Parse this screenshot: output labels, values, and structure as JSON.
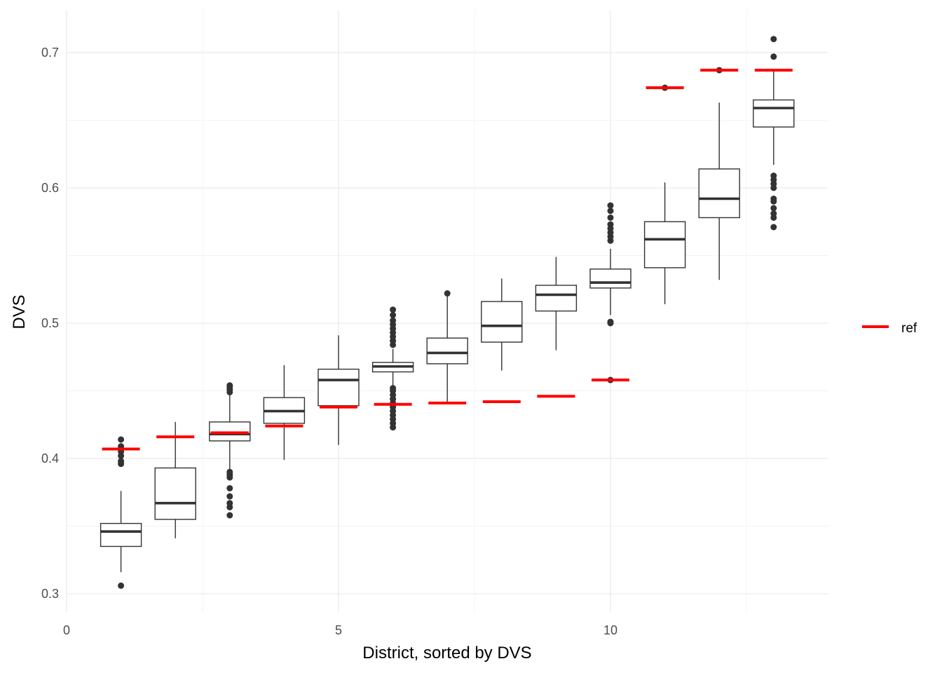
{
  "chart_data": {
    "type": "boxplot",
    "xlabel": "District, sorted by DVS",
    "ylabel": "DVS",
    "xlim": [
      0,
      14
    ],
    "ylim": [
      0.29,
      0.725
    ],
    "x_ticks": [
      0,
      5,
      10
    ],
    "y_ticks": [
      0.3,
      0.4,
      0.5,
      0.6,
      0.7
    ],
    "y_tick_labels": [
      "0.3",
      "0.4",
      "0.5",
      "0.6",
      "0.7"
    ],
    "x_tick_labels": [
      "0",
      "5",
      "10"
    ],
    "grid": true,
    "legend": {
      "position": "right",
      "entries": [
        {
          "label": "ref",
          "color": "#ff0000"
        }
      ]
    },
    "colors": {
      "box": "#333333",
      "ref": "#ff0000",
      "grid_major": "#ebebeb",
      "grid_minor": "#f3f3f3"
    },
    "boxes": [
      {
        "x": 1,
        "whisker_low": 0.316,
        "q1": 0.335,
        "median": 0.346,
        "q3": 0.352,
        "whisker_high": 0.376,
        "outliers": [
          0.306,
          0.396,
          0.398,
          0.402,
          0.405,
          0.409,
          0.414
        ]
      },
      {
        "x": 2,
        "whisker_low": 0.341,
        "q1": 0.355,
        "median": 0.367,
        "q3": 0.393,
        "whisker_high": 0.427,
        "outliers": []
      },
      {
        "x": 3,
        "whisker_low": 0.392,
        "q1": 0.413,
        "median": 0.418,
        "q3": 0.427,
        "whisker_high": 0.448,
        "outliers": [
          0.358,
          0.364,
          0.367,
          0.372,
          0.378,
          0.386,
          0.388,
          0.39,
          0.449,
          0.451,
          0.453,
          0.454
        ]
      },
      {
        "x": 4,
        "whisker_low": 0.399,
        "q1": 0.426,
        "median": 0.435,
        "q3": 0.445,
        "whisker_high": 0.469,
        "outliers": []
      },
      {
        "x": 5,
        "whisker_low": 0.41,
        "q1": 0.439,
        "median": 0.458,
        "q3": 0.466,
        "whisker_high": 0.491,
        "outliers": []
      },
      {
        "x": 6,
        "whisker_low": 0.454,
        "q1": 0.464,
        "median": 0.468,
        "q3": 0.471,
        "whisker_high": 0.481,
        "outliers": [
          0.423,
          0.426,
          0.429,
          0.432,
          0.435,
          0.438,
          0.441,
          0.444,
          0.447,
          0.45,
          0.452,
          0.484,
          0.487,
          0.49,
          0.493,
          0.496,
          0.499,
          0.502,
          0.506,
          0.51
        ]
      },
      {
        "x": 7,
        "whisker_low": 0.441,
        "q1": 0.47,
        "median": 0.478,
        "q3": 0.489,
        "whisker_high": 0.522,
        "outliers": [
          0.522
        ]
      },
      {
        "x": 8,
        "whisker_low": 0.465,
        "q1": 0.486,
        "median": 0.498,
        "q3": 0.516,
        "whisker_high": 0.533,
        "outliers": []
      },
      {
        "x": 9,
        "whisker_low": 0.48,
        "q1": 0.509,
        "median": 0.521,
        "q3": 0.528,
        "whisker_high": 0.549,
        "outliers": []
      },
      {
        "x": 10,
        "whisker_low": 0.506,
        "q1": 0.526,
        "median": 0.53,
        "q3": 0.54,
        "whisker_high": 0.555,
        "outliers": [
          0.458,
          0.5,
          0.501,
          0.561,
          0.564,
          0.567,
          0.57,
          0.573,
          0.578,
          0.583,
          0.587
        ]
      },
      {
        "x": 11,
        "whisker_low": 0.514,
        "q1": 0.541,
        "median": 0.562,
        "q3": 0.575,
        "whisker_high": 0.604,
        "outliers": [
          0.674
        ]
      },
      {
        "x": 12,
        "whisker_low": 0.532,
        "q1": 0.578,
        "median": 0.592,
        "q3": 0.614,
        "whisker_high": 0.663,
        "outliers": [
          0.687
        ]
      },
      {
        "x": 13,
        "whisker_low": 0.617,
        "q1": 0.645,
        "median": 0.659,
        "q3": 0.665,
        "whisker_high": 0.687,
        "outliers": [
          0.571,
          0.578,
          0.581,
          0.585,
          0.59,
          0.592,
          0.6,
          0.603,
          0.606,
          0.609,
          0.697,
          0.71
        ]
      }
    ],
    "ref": [
      {
        "x": 1,
        "value": 0.407
      },
      {
        "x": 2,
        "value": 0.416
      },
      {
        "x": 3,
        "value": 0.419
      },
      {
        "x": 4,
        "value": 0.424
      },
      {
        "x": 5,
        "value": 0.438
      },
      {
        "x": 6,
        "value": 0.44
      },
      {
        "x": 7,
        "value": 0.441
      },
      {
        "x": 8,
        "value": 0.442
      },
      {
        "x": 9,
        "value": 0.446
      },
      {
        "x": 10,
        "value": 0.458
      },
      {
        "x": 11,
        "value": 0.674
      },
      {
        "x": 12,
        "value": 0.687
      },
      {
        "x": 13,
        "value": 0.687
      }
    ]
  }
}
